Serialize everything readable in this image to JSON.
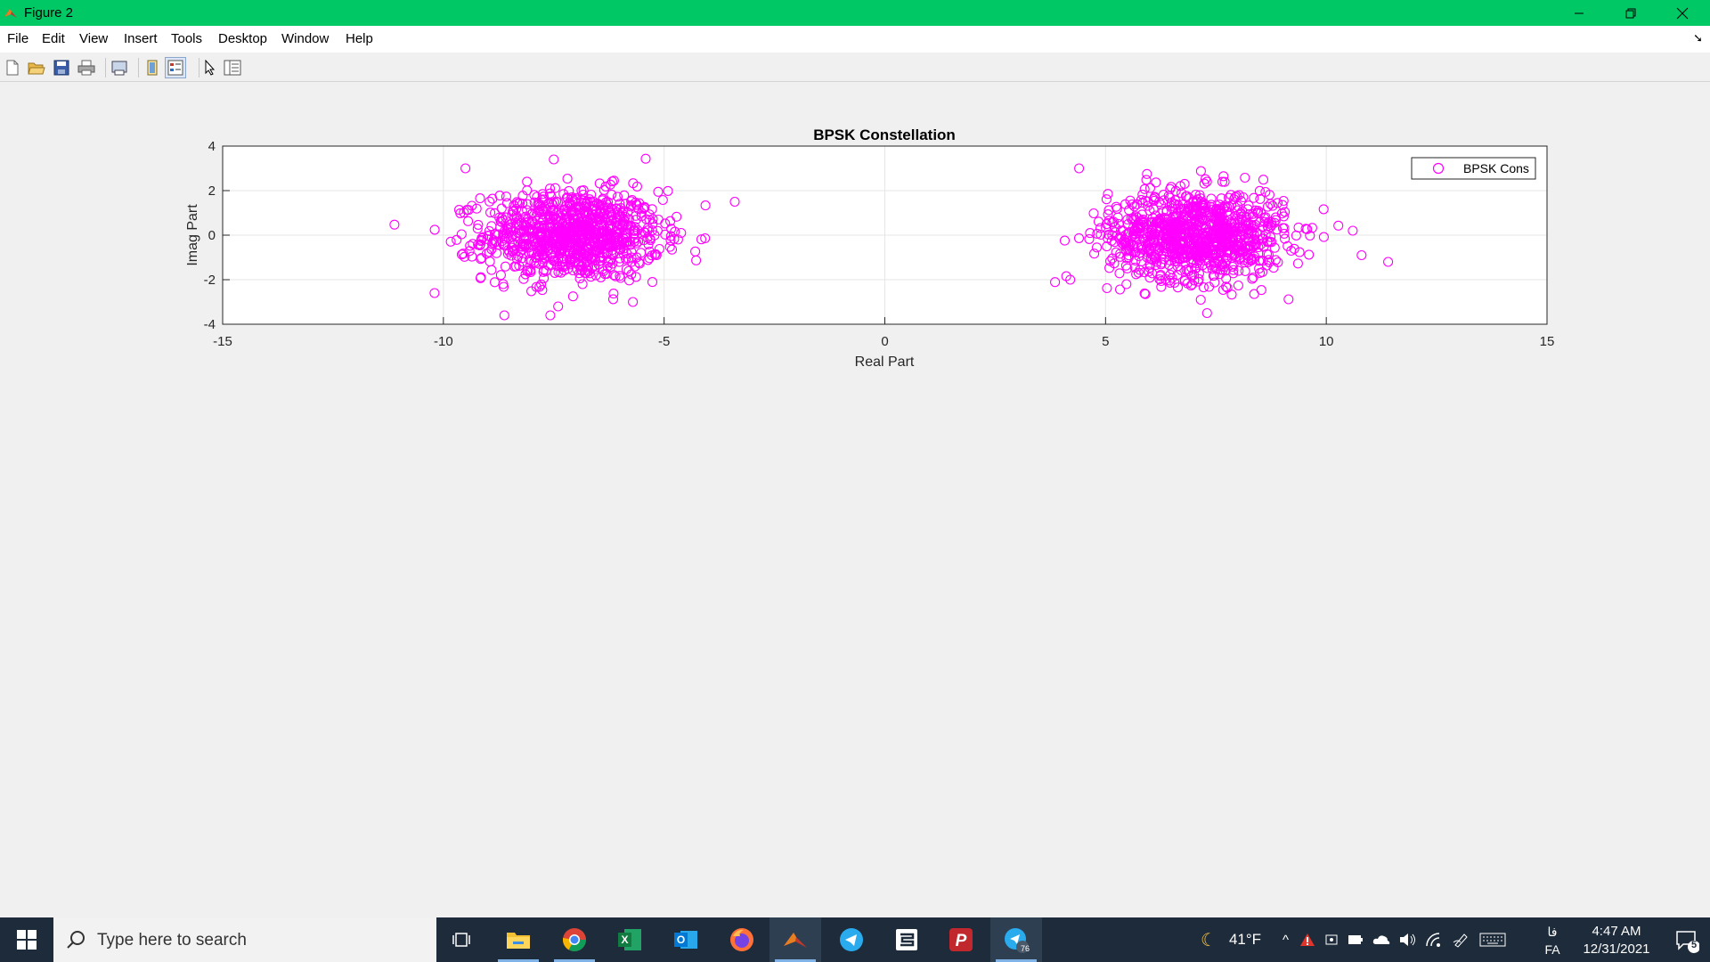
{
  "window": {
    "title": "Figure 2",
    "accent_color": "#00c864"
  },
  "menu": [
    "File",
    "Edit",
    "View",
    "Insert",
    "Tools",
    "Desktop",
    "Window",
    "Help"
  ],
  "toolbar": {
    "icons": [
      "new-figure-icon",
      "open-file-icon",
      "save-icon",
      "print-icon",
      "print-preview-icon",
      "link-plot-icon",
      "insert-legend-icon",
      "edit-plot-arrow-icon",
      "property-inspector-icon"
    ]
  },
  "chart_data": {
    "type": "scatter",
    "title": "BPSK Constellation",
    "xlabel": "Real Part",
    "ylabel": "Imag Part",
    "xlim": [
      -15,
      15
    ],
    "ylim": [
      -4,
      4
    ],
    "xticks": [
      "-15",
      "-10",
      "-5",
      "0",
      "5",
      "10",
      "15"
    ],
    "yticks": [
      "4",
      "2",
      "0",
      "-2",
      "-4"
    ],
    "grid": true,
    "legend": {
      "position": "top-right",
      "entries": [
        "BPSK Cons"
      ]
    },
    "marker": "circle-open",
    "color": "#ff00ff",
    "series": [
      {
        "name": "BPSK Cons",
        "clusters": [
          {
            "center_x": -7.07,
            "center_y": 0,
            "std_dev": 1.0
          },
          {
            "center_x": 7.07,
            "center_y": 0,
            "std_dev": 1.0
          }
        ],
        "outliers": [
          [
            -10.2,
            -2.6
          ],
          [
            -9.5,
            3.0
          ],
          [
            -3.4,
            1.5
          ],
          [
            -7.5,
            3.4
          ],
          [
            4.4,
            3.0
          ],
          [
            10.6,
            0.2
          ],
          [
            10.8,
            -0.9
          ],
          [
            11.4,
            -1.2
          ],
          [
            7.3,
            -3.5
          ],
          [
            -7.4,
            -3.2
          ],
          [
            4.2,
            -2.0
          ]
        ]
      }
    ]
  },
  "taskbar": {
    "search_placeholder": "Type here to search",
    "apps": [
      "task-view-icon",
      "file-explorer-icon",
      "chrome-icon",
      "excel-icon",
      "outlook-icon",
      "firefox-icon",
      "matlab-icon",
      "telegram-icon",
      "sketch-app-icon",
      "powerpoint-p-icon",
      "telegram-active-icon"
    ],
    "telegram_badge": "76",
    "weather": "41°F",
    "language_top": "فا",
    "language": "FA",
    "time": "4:47 AM",
    "date": "12/31/2021",
    "notifications": "5"
  }
}
